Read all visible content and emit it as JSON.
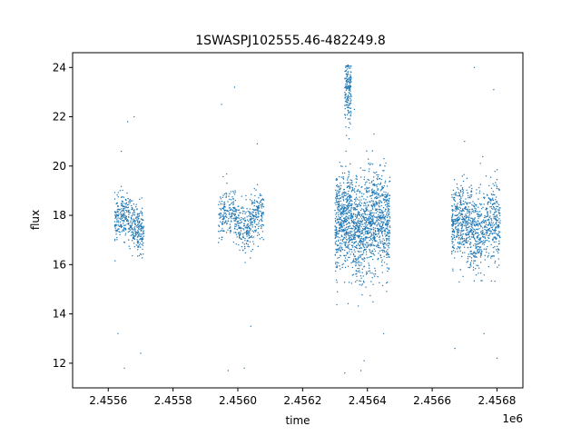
{
  "chart_data": {
    "type": "scatter",
    "title": "1SWASPJ102555.46-482249.8",
    "xlabel": "time",
    "ylabel": "flux",
    "x_offset_label": "1e6",
    "xlim": [
      2.45549,
      2.45688
    ],
    "ylim": [
      11.0,
      24.6
    ],
    "x_ticks": [
      2.4556,
      2.4558,
      2.456,
      2.4562,
      2.4564,
      2.4566,
      2.4568
    ],
    "x_tick_labels": [
      "2.4556",
      "2.4558",
      "2.4560",
      "2.4562",
      "2.4564",
      "2.4566",
      "2.4568"
    ],
    "y_ticks": [
      12,
      14,
      16,
      18,
      20,
      22,
      24
    ],
    "y_tick_labels": [
      "12",
      "14",
      "16",
      "18",
      "20",
      "22",
      "24"
    ],
    "grid": false,
    "marker_color": "#1f77b4",
    "clusters": [
      {
        "x_start": 2.45562,
        "x_end": 2.45571,
        "mean": 17.7,
        "spread": 0.45,
        "n": 420,
        "outliers": [
          [
            2.45563,
            13.2
          ],
          [
            2.45565,
            11.8
          ],
          [
            2.45566,
            21.8
          ],
          [
            2.45568,
            22.0
          ],
          [
            2.4557,
            12.4
          ],
          [
            2.45564,
            20.6
          ]
        ]
      },
      {
        "x_start": 2.45594,
        "x_end": 2.45608,
        "mean": 17.8,
        "spread": 0.5,
        "n": 520,
        "outliers": [
          [
            2.45595,
            22.5
          ],
          [
            2.45597,
            11.7
          ],
          [
            2.45599,
            23.2
          ],
          [
            2.45602,
            11.8
          ],
          [
            2.45604,
            13.5
          ],
          [
            2.45606,
            20.9
          ]
        ]
      },
      {
        "x_start": 2.4563,
        "x_end": 2.45647,
        "mean": 17.6,
        "spread": 1.0,
        "n": 1600,
        "outliers": [
          [
            2.45633,
            11.6
          ],
          [
            2.45636,
            22.3
          ],
          [
            2.45639,
            12.1
          ],
          [
            2.45642,
            21.3
          ],
          [
            2.45645,
            13.2
          ],
          [
            2.45638,
            11.7
          ]
        ]
      },
      {
        "x_start": 2.45633,
        "x_end": 2.45635,
        "mean": 23.0,
        "spread": 0.7,
        "n": 180,
        "outliers": [
          [
            2.45634,
            24.1
          ]
        ]
      },
      {
        "x_start": 2.45666,
        "x_end": 2.45681,
        "mean": 17.5,
        "spread": 0.8,
        "n": 950,
        "outliers": [
          [
            2.45667,
            12.6
          ],
          [
            2.4567,
            21.0
          ],
          [
            2.45673,
            24.0
          ],
          [
            2.45676,
            13.2
          ],
          [
            2.45679,
            23.1
          ],
          [
            2.4568,
            12.2
          ]
        ]
      }
    ]
  }
}
